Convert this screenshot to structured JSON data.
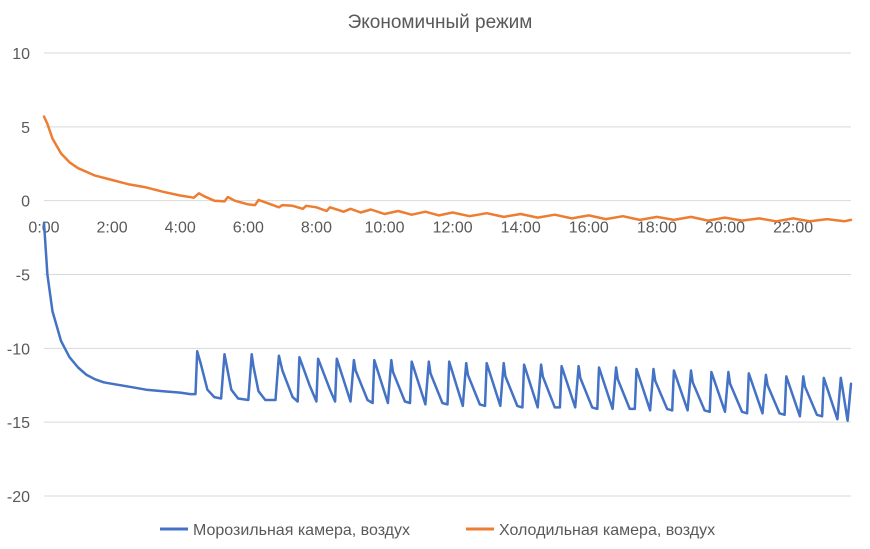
{
  "chart_data": {
    "type": "line",
    "title": "Экономичный режим",
    "xlabel": "",
    "ylabel": "",
    "x_range_hours": [
      0,
      23.7
    ],
    "ylim": [
      -20,
      10
    ],
    "y_ticks": [
      10,
      5,
      0,
      -5,
      -10,
      -15,
      -20
    ],
    "y_tick_labels": [
      "10",
      "5",
      "0",
      "-5",
      "-10",
      "-15",
      "-20"
    ],
    "x_tick_labels": [
      "0:00",
      "2:00",
      "4:00",
      "6:00",
      "8:00",
      "10:00",
      "12:00",
      "14:00",
      "16:00",
      "18:00",
      "20:00",
      "22:00"
    ],
    "x_tick_hours": [
      0,
      2,
      4,
      6,
      8,
      10,
      12,
      14,
      16,
      18,
      20,
      22
    ],
    "grid": true,
    "legend_position": "bottom",
    "colors": {
      "freezer": "#4472c4",
      "fridge": "#ed7d31"
    },
    "series": [
      {
        "name": "Морозильная камера, воздух",
        "key": "freezer",
        "x": [
          0,
          0.1,
          0.25,
          0.5,
          0.75,
          1,
          1.25,
          1.5,
          1.75,
          2,
          2.5,
          3,
          3.5,
          4,
          4.3,
          4.45,
          4.5,
          4.6,
          4.8,
          5.0,
          5.2,
          5.3,
          5.35,
          5.5,
          5.7,
          6.0,
          6.1,
          6.15,
          6.3,
          6.5,
          6.8,
          6.9,
          7.0,
          7.3,
          7.45,
          7.5,
          7.8,
          8.0,
          8.05,
          8.4,
          8.55,
          8.6,
          9.0,
          9.1,
          9.15,
          9.5,
          9.65,
          9.7,
          10.1,
          10.2,
          10.25,
          10.6,
          10.75,
          10.8,
          11.2,
          11.3,
          11.35,
          11.7,
          11.85,
          11.9,
          12.3,
          12.4,
          12.45,
          12.8,
          12.95,
          13.0,
          13.4,
          13.5,
          13.55,
          13.9,
          14.05,
          14.1,
          14.5,
          14.6,
          14.65,
          15.0,
          15.15,
          15.2,
          15.6,
          15.7,
          15.75,
          16.1,
          16.25,
          16.3,
          16.7,
          16.8,
          16.85,
          17.2,
          17.35,
          17.4,
          17.8,
          17.9,
          17.95,
          18.3,
          18.45,
          18.5,
          18.9,
          19.0,
          19.05,
          19.4,
          19.55,
          19.6,
          20.0,
          20.1,
          20.15,
          20.5,
          20.65,
          20.7,
          21.1,
          21.2,
          21.25,
          21.6,
          21.75,
          21.8,
          22.2,
          22.3,
          22.35,
          22.7,
          22.85,
          22.9,
          23.3,
          23.4,
          23.45,
          23.6,
          23.7
        ],
        "values": [
          -1.5,
          -5.0,
          -7.5,
          -9.5,
          -10.6,
          -11.3,
          -11.8,
          -12.1,
          -12.3,
          -12.4,
          -12.6,
          -12.8,
          -12.9,
          -13.0,
          -13.1,
          -13.1,
          -10.2,
          -11.0,
          -12.8,
          -13.3,
          -13.4,
          -10.4,
          -11.0,
          -12.8,
          -13.4,
          -13.5,
          -10.4,
          -11.2,
          -12.9,
          -13.5,
          -13.5,
          -10.5,
          -11.5,
          -13.3,
          -13.6,
          -10.6,
          -12.5,
          -13.6,
          -10.7,
          -12.8,
          -13.6,
          -10.7,
          -13.6,
          -10.8,
          -11.5,
          -13.5,
          -13.7,
          -10.8,
          -13.7,
          -10.8,
          -11.6,
          -13.6,
          -13.7,
          -10.9,
          -13.8,
          -10.9,
          -11.7,
          -13.7,
          -13.8,
          -10.9,
          -13.9,
          -11.0,
          -11.8,
          -13.8,
          -13.9,
          -11.0,
          -13.9,
          -11.0,
          -11.9,
          -13.9,
          -14.0,
          -11.1,
          -14.0,
          -11.1,
          -11.9,
          -14.0,
          -14.0,
          -11.2,
          -14.0,
          -11.2,
          -12.0,
          -14.0,
          -14.1,
          -11.3,
          -14.1,
          -11.3,
          -12.1,
          -14.1,
          -14.1,
          -11.4,
          -14.2,
          -11.4,
          -12.2,
          -14.1,
          -14.2,
          -11.5,
          -14.2,
          -11.5,
          -12.3,
          -14.2,
          -14.3,
          -11.6,
          -14.3,
          -11.6,
          -12.4,
          -14.3,
          -14.4,
          -11.7,
          -14.4,
          -11.8,
          -12.5,
          -14.4,
          -14.5,
          -11.9,
          -14.6,
          -11.9,
          -12.6,
          -14.5,
          -14.6,
          -12.0,
          -14.8,
          -12.0,
          -12.7,
          -14.9,
          -12.4
        ]
      },
      {
        "name": "Холодильная камера, воздух",
        "key": "fridge",
        "x": [
          0,
          0.1,
          0.25,
          0.5,
          0.75,
          1,
          1.5,
          2,
          2.5,
          3,
          3.5,
          4,
          4.4,
          4.55,
          4.7,
          5.0,
          5.3,
          5.4,
          5.6,
          6.0,
          6.2,
          6.3,
          6.6,
          6.9,
          7.0,
          7.3,
          7.6,
          7.7,
          8.0,
          8.3,
          8.4,
          8.8,
          9.0,
          9.3,
          9.6,
          10.0,
          10.4,
          10.8,
          11.2,
          11.6,
          12.0,
          12.5,
          13.0,
          13.5,
          14.0,
          14.5,
          15.0,
          15.5,
          16.0,
          16.5,
          17.0,
          17.5,
          18.0,
          18.5,
          19.0,
          19.5,
          20.0,
          20.5,
          21.0,
          21.5,
          22.0,
          22.5,
          23.0,
          23.5,
          23.7
        ],
        "values": [
          5.7,
          5.2,
          4.2,
          3.2,
          2.6,
          2.2,
          1.7,
          1.4,
          1.1,
          0.9,
          0.6,
          0.35,
          0.2,
          0.5,
          0.3,
          0.0,
          -0.05,
          0.25,
          0.0,
          -0.25,
          -0.3,
          0.05,
          -0.2,
          -0.45,
          -0.3,
          -0.35,
          -0.55,
          -0.35,
          -0.45,
          -0.7,
          -0.45,
          -0.75,
          -0.55,
          -0.8,
          -0.6,
          -0.9,
          -0.7,
          -0.95,
          -0.75,
          -1.0,
          -0.8,
          -1.05,
          -0.85,
          -1.1,
          -0.9,
          -1.15,
          -0.95,
          -1.2,
          -1.0,
          -1.25,
          -1.05,
          -1.3,
          -1.1,
          -1.3,
          -1.1,
          -1.35,
          -1.15,
          -1.35,
          -1.2,
          -1.4,
          -1.2,
          -1.4,
          -1.25,
          -1.4,
          -1.3
        ]
      }
    ]
  }
}
